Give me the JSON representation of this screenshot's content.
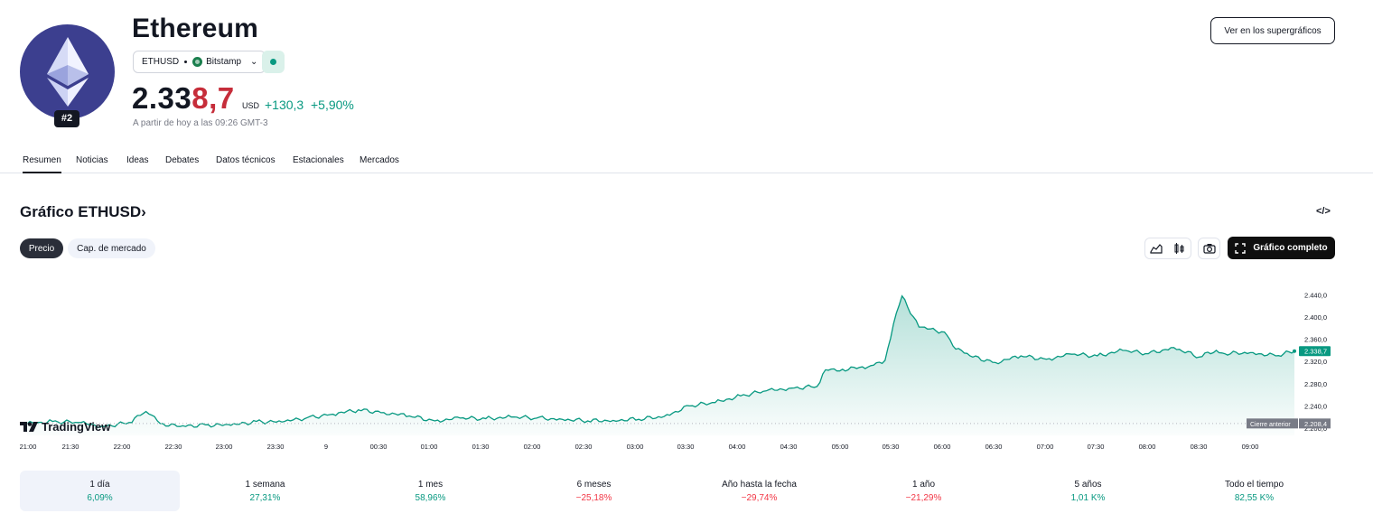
{
  "coin": {
    "name": "Ethereum",
    "rank": "#2",
    "symbol": "ETHUSD",
    "exchange": "Bitstamp",
    "price_main": "2.338",
    "price_tail": "7",
    "price_comma": ",",
    "price_highlight": "8,7",
    "price_start": "2.33",
    "currency": "USD",
    "change_abs": "+130,3",
    "change_pct": "+5,90%",
    "as_of": "A partir de hoy a las 09:26 GMT-3"
  },
  "header": {
    "supercharts_button": "Ver en los supergráficos"
  },
  "tabs": [
    "Resumen",
    "Noticias",
    "Ideas",
    "Debates",
    "Datos técnicos",
    "Estacionales",
    "Mercados"
  ],
  "chart_section": {
    "title": "Gráfico ETHUSD",
    "title_arrow": "›",
    "segments": [
      "Precio",
      "Cap. de mercado"
    ],
    "full_chart_button": "Gráfico completo",
    "brand": "TradingView"
  },
  "colors": {
    "accent": "#089981",
    "negative": "#f23645",
    "price_highlight": "#c62d3a"
  },
  "chart_data": {
    "type": "area",
    "x_ticks": [
      "21:00",
      "21:30",
      "22:00",
      "22:30",
      "23:00",
      "23:30",
      "9",
      "00:30",
      "01:00",
      "01:30",
      "02:00",
      "02:30",
      "03:00",
      "03:30",
      "04:00",
      "04:30",
      "05:00",
      "05:30",
      "06:00",
      "06:30",
      "07:00",
      "07:30",
      "08:00",
      "08:30",
      "09:00"
    ],
    "y_ticks": [
      "2.440,0",
      "2.400,0",
      "2.360,0",
      "2.320,0",
      "2.280,0",
      "2.240,0",
      "2.200,0"
    ],
    "ylim": [
      2200,
      2460
    ],
    "series": [
      {
        "x": [
          "21:00",
          "21:15",
          "21:30",
          "21:45",
          "22:00",
          "22:10",
          "22:20",
          "22:30",
          "22:45",
          "23:00",
          "23:15",
          "23:30",
          "23:45",
          "00:00",
          "00:15",
          "00:30",
          "00:45",
          "01:00",
          "01:15",
          "01:30",
          "01:45",
          "02:00",
          "02:15",
          "02:30",
          "02:45",
          "03:00",
          "03:15",
          "03:30",
          "03:45",
          "04:00",
          "04:15",
          "04:30",
          "04:45",
          "04:50",
          "05:00",
          "05:15",
          "05:25",
          "05:30",
          "05:35",
          "05:45",
          "06:00",
          "06:05",
          "06:15",
          "06:30",
          "06:45",
          "07:00",
          "07:15",
          "07:30",
          "07:45",
          "08:00",
          "08:15",
          "08:30",
          "08:40",
          "08:45",
          "09:00",
          "09:15",
          "09:26"
        ],
        "y": [
          2208,
          2212,
          2210,
          2203,
          2210,
          2230,
          2208,
          2203,
          2206,
          2205,
          2212,
          2211,
          2219,
          2225,
          2233,
          2228,
          2222,
          2213,
          2218,
          2217,
          2220,
          2218,
          2216,
          2213,
          2214,
          2216,
          2221,
          2240,
          2246,
          2258,
          2267,
          2272,
          2275,
          2305,
          2306,
          2310,
          2322,
          2388,
          2438,
          2382,
          2373,
          2348,
          2330,
          2318,
          2330,
          2324,
          2333,
          2330,
          2340,
          2334,
          2345,
          2328,
          2340,
          2334,
          2336,
          2330,
          2338.7
        ]
      }
    ],
    "last_price_label": "2.338,7",
    "prev_close_label": "Cierre anterior",
    "prev_close_value": "2.208,4",
    "prev_close": 2208.4,
    "grid": false
  },
  "periods": [
    {
      "label": "1 día",
      "value": "6,09%",
      "sign": "pos"
    },
    {
      "label": "1 semana",
      "value": "27,31%",
      "sign": "pos"
    },
    {
      "label": "1 mes",
      "value": "58,96%",
      "sign": "pos"
    },
    {
      "label": "6 meses",
      "value": "−25,18%",
      "sign": "neg"
    },
    {
      "label": "Año hasta la fecha",
      "value": "−29,74%",
      "sign": "neg"
    },
    {
      "label": "1 año",
      "value": "−21,29%",
      "sign": "neg"
    },
    {
      "label": "5 años",
      "value": "1,01 K%",
      "sign": "pos"
    },
    {
      "label": "Todo el tiempo",
      "value": "82,55 K%",
      "sign": "pos"
    }
  ]
}
